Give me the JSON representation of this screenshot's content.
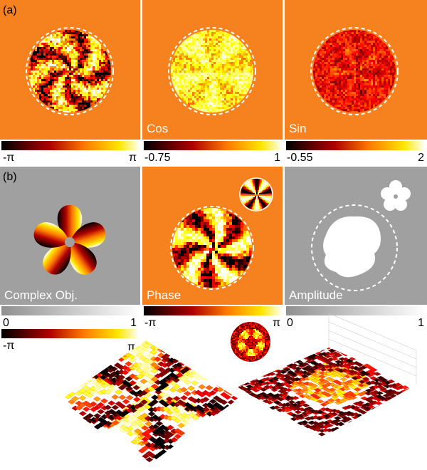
{
  "row_a": {
    "label": "(a)",
    "cos_caption": "Cos",
    "sin_caption": "Sin",
    "colorbars": [
      [
        "-π",
        "π"
      ],
      [
        "-0.75",
        "1"
      ],
      [
        "-0.55",
        "2"
      ]
    ]
  },
  "row_b": {
    "label": "(b)",
    "captions": [
      "Complex Obj.",
      "Phase",
      "Amplitude"
    ],
    "colorbars": [
      [
        "0",
        "1"
      ],
      [
        "-π",
        "π"
      ],
      [
        "0",
        "1"
      ]
    ]
  },
  "surface_colorbar": [
    "-π",
    "π"
  ]
}
